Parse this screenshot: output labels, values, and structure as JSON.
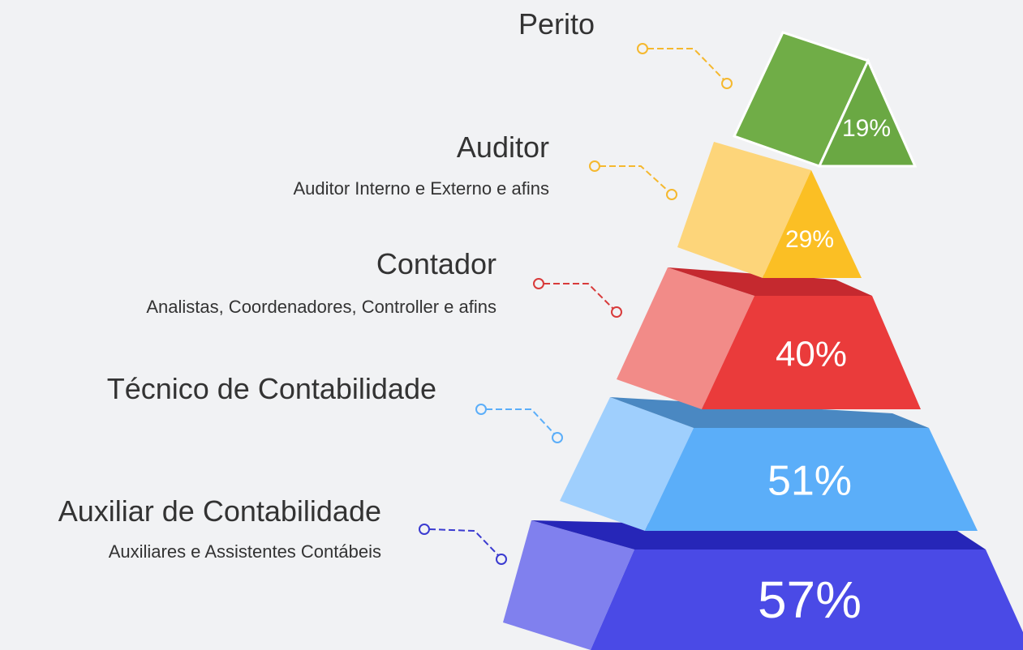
{
  "levels": [
    {
      "title": "Perito",
      "percent": "19%"
    },
    {
      "title": "Auditor",
      "subtitle": "Auditor Interno e Externo e afins",
      "percent": "29%"
    },
    {
      "title": "Contador",
      "subtitle": "Analistas, Coordenadores, Controller e afins",
      "percent": "40%"
    },
    {
      "title": "Técnico de Contabilidade",
      "percent": "51%"
    },
    {
      "title": "Auxiliar de Contabilidade",
      "subtitle": "Auxiliares e Assistentes Contábeis",
      "percent": "57%"
    }
  ]
}
